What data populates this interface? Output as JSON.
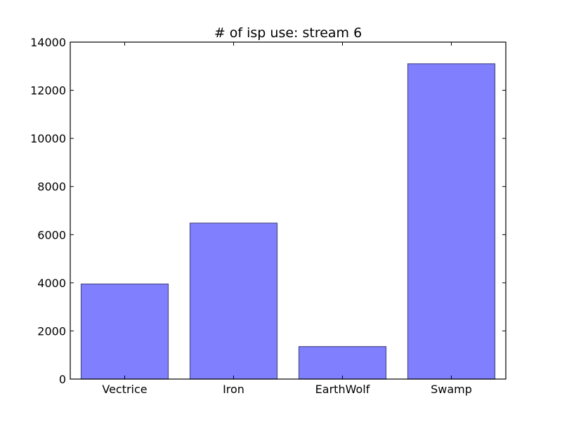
{
  "chart_data": {
    "type": "bar",
    "title": "# of isp use: stream  6",
    "xlabel": "",
    "ylabel": "",
    "categories": [
      "Vectrice",
      "Iron",
      "EarthWolf",
      "Swamp"
    ],
    "values": [
      3950,
      6480,
      1350,
      13100
    ],
    "ylim": [
      0,
      14000
    ],
    "yticks": [
      0,
      2000,
      4000,
      6000,
      8000,
      10000,
      12000,
      14000
    ],
    "ytick_labels": [
      "0",
      "2000",
      "4000",
      "6000",
      "8000",
      "10000",
      "12000",
      "14000"
    ],
    "grid": false,
    "bar_color": "#8080ff",
    "bar_edge_color": "#4d4d8a"
  }
}
